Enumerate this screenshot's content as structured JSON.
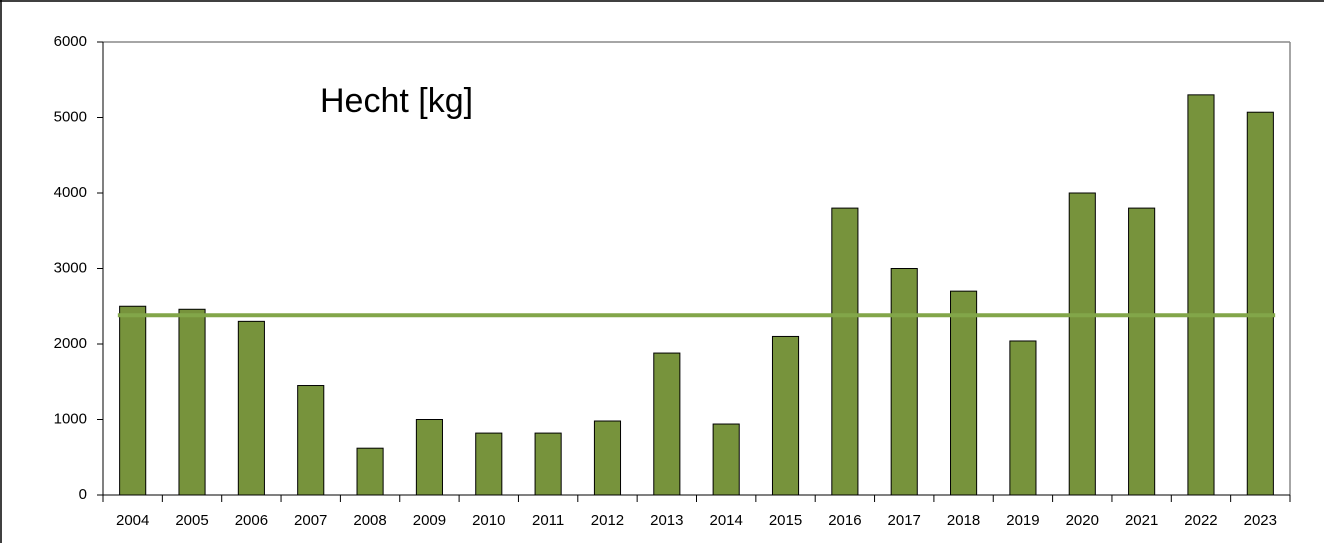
{
  "chart_data": {
    "type": "bar",
    "title": "Hecht [kg]",
    "categories": [
      "2004",
      "2005",
      "2006",
      "2007",
      "2008",
      "2009",
      "2010",
      "2011",
      "2012",
      "2013",
      "2014",
      "2015",
      "2016",
      "2017",
      "2018",
      "2019",
      "2020",
      "2021",
      "2022",
      "2023"
    ],
    "values": [
      2500,
      2460,
      2300,
      1450,
      620,
      1000,
      820,
      820,
      980,
      1880,
      940,
      2100,
      3800,
      3000,
      2700,
      2040,
      4000,
      3800,
      5300,
      5070
    ],
    "color": "#77933c",
    "mean_line": {
      "value": 2380,
      "color": "#82a649"
    },
    "ylim": [
      0,
      6000
    ],
    "yticks": [
      0,
      1000,
      2000,
      3000,
      4000,
      5000,
      6000
    ],
    "grid": false
  }
}
